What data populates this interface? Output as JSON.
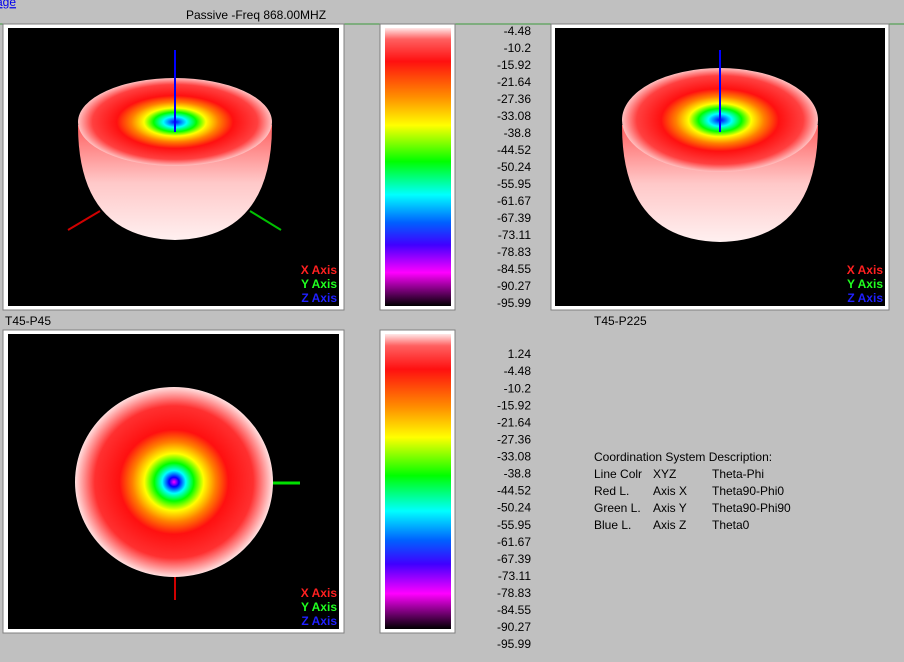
{
  "header": {
    "link": "age",
    "title": "Passive -Freq 868.00MHZ"
  },
  "axis_legend": [
    "X Axis",
    "Y Axis",
    "Z Axis"
  ],
  "view_labels": [
    "T45-P45",
    "T45-P225"
  ],
  "scales": [
    [
      -4.48,
      -10.2,
      -15.92,
      -21.64,
      -27.36,
      -33.08,
      -38.8,
      -44.52,
      -50.24,
      -55.95,
      -61.67,
      -67.39,
      -73.11,
      -78.83,
      -84.55,
      -90.27,
      -95.99
    ],
    [
      1.24,
      -4.48,
      -10.2,
      -15.92,
      -21.64,
      -27.36,
      -33.08,
      -38.8,
      -44.52,
      -50.24,
      -55.95,
      -61.67,
      -67.39,
      -73.11,
      -78.83,
      -84.55,
      -90.27,
      -95.99
    ]
  ],
  "description": {
    "title": "Coordination System Description:",
    "rows": [
      [
        "Line Colr",
        "XYZ",
        "Theta-Phi"
      ],
      [
        "Red L.",
        "Axis X",
        "Theta90-Phi0"
      ],
      [
        "Green L.",
        "Axis Y",
        "Theta90-Phi90"
      ],
      [
        "Blue L.",
        "Axis Z",
        "Theta0"
      ]
    ]
  }
}
